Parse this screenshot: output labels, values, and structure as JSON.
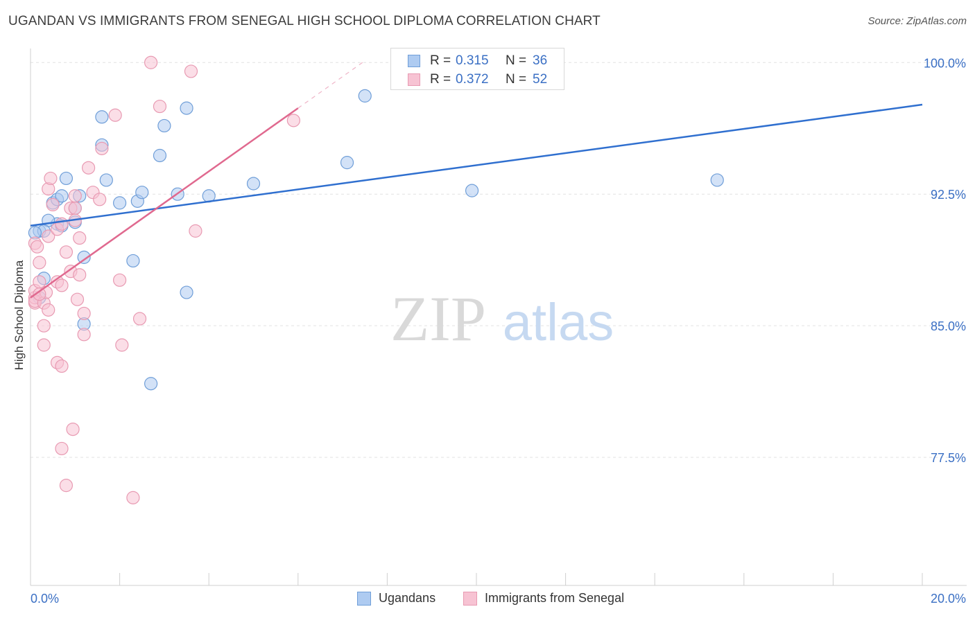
{
  "header": {
    "title": "UGANDAN VS IMMIGRANTS FROM SENEGAL HIGH SCHOOL DIPLOMA CORRELATION CHART",
    "source": "Source: ZipAtlas.com"
  },
  "watermark": {
    "part1": "ZIP",
    "part2": "atlas"
  },
  "colors": {
    "blue_fill": "#aecbf1",
    "blue_stroke": "#6f9ed8",
    "blue_line": "#2f6fcf",
    "pink_fill": "#f7c3d3",
    "pink_stroke": "#e89ab2",
    "pink_line": "#e0698f",
    "tick_label": "#3a6fc4",
    "grid": "#e2e2e2"
  },
  "legend_top": {
    "rows": [
      {
        "r_label": "R = ",
        "r_value": "0.315",
        "n_label": "N = ",
        "n_value": "36"
      },
      {
        "r_label": "R = ",
        "r_value": "0.372",
        "n_label": "N = ",
        "n_value": "52"
      }
    ]
  },
  "legend_bottom": {
    "items": [
      "Ugandans",
      "Immigrants from Senegal"
    ]
  },
  "chart_data": {
    "type": "scatter",
    "title": "UGANDAN VS IMMIGRANTS FROM SENEGAL HIGH SCHOOL DIPLOMA CORRELATION CHART",
    "xlabel": "",
    "ylabel": "High School Diploma",
    "xlim": [
      0,
      20
    ],
    "ylim": [
      70.2,
      100.8
    ],
    "x_tick_labels": [
      "0.0%",
      "20.0%"
    ],
    "x_tick_values": [
      0,
      20
    ],
    "y_tick_labels": [
      "100.0%",
      "92.5%",
      "85.0%",
      "77.5%"
    ],
    "y_tick_values": [
      100,
      92.5,
      85,
      77.5
    ],
    "legend_position": "top-center",
    "series": [
      {
        "name": "Ugandans",
        "color": "blue",
        "r": 0.315,
        "n": 36,
        "points": [
          [
            0.2,
            86.6
          ],
          [
            0.3,
            87.7
          ],
          [
            0.5,
            92.0
          ],
          [
            0.6,
            92.2
          ],
          [
            0.7,
            92.4
          ],
          [
            0.8,
            93.4
          ],
          [
            1.0,
            91.7
          ],
          [
            1.1,
            92.4
          ],
          [
            1.2,
            88.9
          ],
          [
            0.6,
            90.8
          ],
          [
            0.7,
            90.7
          ],
          [
            1.0,
            90.9
          ],
          [
            0.4,
            91.0
          ],
          [
            0.2,
            90.4
          ],
          [
            0.3,
            90.4
          ],
          [
            1.2,
            85.1
          ],
          [
            1.6,
            95.3
          ],
          [
            1.6,
            96.9
          ],
          [
            1.7,
            93.3
          ],
          [
            2.0,
            92.0
          ],
          [
            2.4,
            92.1
          ],
          [
            2.5,
            92.6
          ],
          [
            2.3,
            88.7
          ],
          [
            2.7,
            81.7
          ],
          [
            2.9,
            94.7
          ],
          [
            3.0,
            96.4
          ],
          [
            3.3,
            92.5
          ],
          [
            3.5,
            97.4
          ],
          [
            3.5,
            86.9
          ],
          [
            4.0,
            92.4
          ],
          [
            5.0,
            93.1
          ],
          [
            7.1,
            94.3
          ],
          [
            7.5,
            98.1
          ],
          [
            9.9,
            92.7
          ],
          [
            15.4,
            93.3
          ],
          [
            0.1,
            90.3
          ]
        ],
        "trend_line": {
          "x": [
            0,
            20
          ],
          "y": [
            90.7,
            97.6
          ]
        }
      },
      {
        "name": "Immigrants from Senegal",
        "color": "pink",
        "r": 0.372,
        "n": 52,
        "points": [
          [
            0.1,
            86.3
          ],
          [
            0.1,
            86.6
          ],
          [
            0.1,
            87.0
          ],
          [
            0.1,
            86.4
          ],
          [
            0.1,
            89.7
          ],
          [
            0.15,
            89.5
          ],
          [
            0.2,
            87.5
          ],
          [
            0.2,
            88.6
          ],
          [
            0.3,
            86.3
          ],
          [
            0.35,
            86.9
          ],
          [
            0.3,
            85.0
          ],
          [
            0.3,
            83.9
          ],
          [
            0.4,
            85.9
          ],
          [
            0.4,
            90.1
          ],
          [
            0.4,
            92.8
          ],
          [
            0.45,
            93.4
          ],
          [
            0.5,
            91.9
          ],
          [
            0.6,
            90.5
          ],
          [
            0.6,
            87.5
          ],
          [
            0.6,
            82.9
          ],
          [
            0.7,
            90.8
          ],
          [
            0.7,
            87.3
          ],
          [
            0.7,
            82.7
          ],
          [
            0.7,
            78.0
          ],
          [
            0.8,
            89.2
          ],
          [
            0.8,
            75.9
          ],
          [
            0.9,
            88.1
          ],
          [
            0.9,
            91.7
          ],
          [
            0.95,
            79.1
          ],
          [
            1.0,
            91.7
          ],
          [
            1.0,
            91.0
          ],
          [
            1.0,
            92.4
          ],
          [
            1.05,
            86.5
          ],
          [
            1.1,
            87.9
          ],
          [
            1.1,
            90.0
          ],
          [
            1.2,
            85.7
          ],
          [
            1.2,
            84.5
          ],
          [
            1.3,
            94.0
          ],
          [
            1.4,
            92.6
          ],
          [
            1.55,
            92.2
          ],
          [
            1.6,
            95.1
          ],
          [
            1.9,
            97.0
          ],
          [
            2.0,
            87.6
          ],
          [
            2.05,
            83.9
          ],
          [
            2.3,
            75.2
          ],
          [
            2.45,
            85.4
          ],
          [
            2.7,
            100.0
          ],
          [
            2.9,
            97.5
          ],
          [
            3.6,
            99.5
          ],
          [
            3.7,
            90.4
          ],
          [
            5.9,
            96.7
          ],
          [
            0.2,
            86.8
          ]
        ],
        "trend_line": {
          "x": [
            0,
            6.0
          ],
          "y": [
            86.6,
            97.4
          ]
        },
        "trend_extension": {
          "x": [
            6.0,
            7.5
          ],
          "y": [
            97.4,
            100.1
          ]
        }
      }
    ]
  }
}
